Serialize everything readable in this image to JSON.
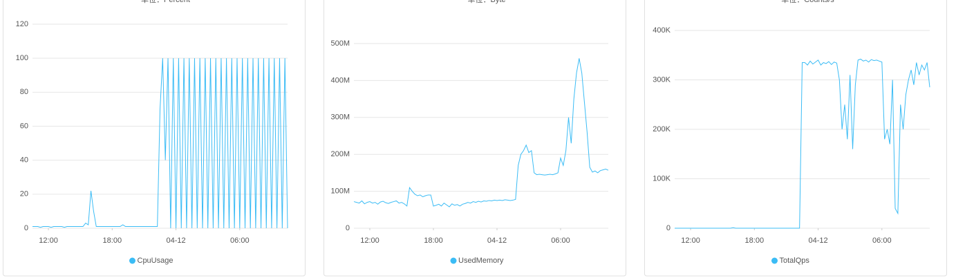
{
  "chart_data": [
    {
      "type": "line",
      "subtitle": "单位：Percent",
      "x": [
        10.5,
        10.75,
        11,
        11.25,
        11.5,
        11.75,
        12,
        12.25,
        12.5,
        12.75,
        13,
        13.25,
        13.5,
        13.75,
        14,
        14.25,
        14.5,
        14.75,
        15,
        15.25,
        15.5,
        15.75,
        16,
        16.25,
        16.5,
        16.75,
        17,
        17.25,
        17.5,
        17.75,
        18,
        18.25,
        18.5,
        18.75,
        19,
        19.25,
        19.5,
        19.75,
        20,
        20.25,
        20.5,
        20.75,
        21,
        21.25,
        21.5,
        21.75,
        22,
        22.25,
        22.5,
        22.75,
        23,
        23.25,
        23.5,
        23.75,
        24,
        24.25,
        24.5,
        24.75,
        25,
        25.25,
        25.5,
        25.75,
        26,
        26.25,
        26.5,
        26.75,
        27,
        27.25,
        27.5,
        27.75,
        28,
        28.25,
        28.5,
        28.75,
        29,
        29.25,
        29.5,
        29.75,
        30,
        30.25,
        30.5,
        30.75,
        31,
        31.25,
        31.5,
        31.75,
        32,
        32.25,
        32.5,
        32.75,
        33,
        33.25,
        33.5,
        33.75,
        34,
        34.25,
        34.5
      ],
      "series": [
        {
          "name": "CpuUsage",
          "color": "#3bbcf5",
          "values": [
            1,
            1,
            1,
            0.5,
            1,
            1,
            1,
            0.5,
            1,
            1,
            1,
            1,
            0.5,
            1,
            1,
            1,
            1,
            1,
            1,
            1,
            3,
            2,
            22,
            10,
            1,
            1,
            1,
            1,
            1,
            1,
            1,
            1,
            1,
            1,
            2,
            1,
            1,
            1,
            1,
            1,
            1,
            1,
            1,
            1,
            1,
            1,
            1,
            1,
            70,
            100,
            40,
            100,
            0,
            100,
            0,
            100,
            0,
            100,
            0,
            100,
            0,
            100,
            0,
            100,
            0,
            100,
            0,
            100,
            0,
            100,
            0,
            100,
            0,
            100,
            0,
            100,
            0,
            100,
            0,
            100,
            0,
            100,
            0,
            100,
            0,
            100,
            0,
            100,
            0,
            100,
            0,
            100,
            0,
            100,
            0,
            100,
            0
          ]
        }
      ],
      "xlim": [
        10.5,
        34.5
      ],
      "xticks": [
        {
          "value": 12,
          "label": "12:00"
        },
        {
          "value": 18,
          "label": "18:00"
        },
        {
          "value": 24,
          "label": "04-12"
        },
        {
          "value": 30,
          "label": "06:00"
        }
      ],
      "ylim": [
        0,
        120
      ],
      "yticks": [
        0,
        20,
        40,
        60,
        80,
        100,
        120
      ],
      "grid": true
    },
    {
      "type": "line",
      "subtitle": "单位：Byte",
      "x": [
        10.5,
        10.75,
        11,
        11.25,
        11.5,
        11.75,
        12,
        12.25,
        12.5,
        12.75,
        13,
        13.25,
        13.5,
        13.75,
        14,
        14.25,
        14.5,
        14.75,
        15,
        15.25,
        15.5,
        15.75,
        16,
        16.25,
        16.5,
        16.75,
        17,
        17.25,
        17.5,
        17.75,
        18,
        18.25,
        18.5,
        18.75,
        19,
        19.25,
        19.5,
        19.75,
        20,
        20.25,
        20.5,
        20.75,
        21,
        21.25,
        21.5,
        21.75,
        22,
        22.25,
        22.5,
        22.75,
        23,
        23.25,
        23.5,
        23.75,
        24,
        24.25,
        24.5,
        24.75,
        25,
        25.25,
        25.5,
        25.75,
        26,
        26.25,
        26.5,
        26.75,
        27,
        27.25,
        27.5,
        27.75,
        28,
        28.25,
        28.5,
        28.75,
        29,
        29.25,
        29.5,
        29.75,
        30,
        30.25,
        30.5,
        30.75,
        31,
        31.25,
        31.5,
        31.75,
        32,
        32.25,
        32.5,
        32.75,
        33,
        33.25,
        33.5,
        33.75,
        34,
        34.25,
        34.5
      ],
      "series": [
        {
          "name": "UsedMemory",
          "color": "#3bbcf5",
          "values": [
            72000000,
            70000000,
            68000000,
            74000000,
            66000000,
            70000000,
            72000000,
            68000000,
            70000000,
            65000000,
            71000000,
            73000000,
            69000000,
            67000000,
            70000000,
            72000000,
            74000000,
            68000000,
            70000000,
            66000000,
            60000000,
            110000000,
            100000000,
            92000000,
            88000000,
            90000000,
            85000000,
            88000000,
            90000000,
            90000000,
            60000000,
            62000000,
            65000000,
            60000000,
            68000000,
            63000000,
            58000000,
            66000000,
            62000000,
            64000000,
            60000000,
            65000000,
            67000000,
            70000000,
            68000000,
            72000000,
            70000000,
            73000000,
            71000000,
            74000000,
            73000000,
            75000000,
            74000000,
            76000000,
            75000000,
            76000000,
            75000000,
            77000000,
            76000000,
            75000000,
            76000000,
            78000000,
            170000000,
            200000000,
            210000000,
            225000000,
            205000000,
            210000000,
            150000000,
            145000000,
            146000000,
            145000000,
            144000000,
            145000000,
            146000000,
            145000000,
            147000000,
            150000000,
            190000000,
            170000000,
            210000000,
            300000000,
            230000000,
            350000000,
            420000000,
            460000000,
            420000000,
            340000000,
            260000000,
            165000000,
            152000000,
            155000000,
            150000000,
            156000000,
            158000000,
            160000000,
            157000000
          ]
        }
      ],
      "xlim": [
        10.5,
        34.5
      ],
      "xticks": [
        {
          "value": 12,
          "label": "12:00"
        },
        {
          "value": 18,
          "label": "18:00"
        },
        {
          "value": 24,
          "label": "04-12"
        },
        {
          "value": 30,
          "label": "06:00"
        }
      ],
      "ylim": [
        0,
        500000000
      ],
      "yticks": [
        0,
        {
          "value": 100000000,
          "label": "100M"
        },
        {
          "value": 200000000,
          "label": "200M"
        },
        {
          "value": 300000000,
          "label": "300M"
        },
        {
          "value": 400000000,
          "label": "400M"
        },
        {
          "value": 500000000,
          "label": "500M"
        }
      ],
      "grid": true
    },
    {
      "type": "line",
      "subtitle": "单位：Counts/s",
      "x": [
        10.5,
        10.75,
        11,
        11.25,
        11.5,
        11.75,
        12,
        12.25,
        12.5,
        12.75,
        13,
        13.25,
        13.5,
        13.75,
        14,
        14.25,
        14.5,
        14.75,
        15,
        15.25,
        15.5,
        15.75,
        16,
        16.25,
        16.5,
        16.75,
        17,
        17.25,
        17.5,
        17.75,
        18,
        18.25,
        18.5,
        18.75,
        19,
        19.25,
        19.5,
        19.75,
        20,
        20.25,
        20.5,
        20.75,
        21,
        21.25,
        21.5,
        21.75,
        22,
        22.25,
        22.5,
        22.75,
        23,
        23.25,
        23.5,
        23.75,
        24,
        24.25,
        24.5,
        24.75,
        25,
        25.25,
        25.5,
        25.75,
        26,
        26.25,
        26.5,
        26.75,
        27,
        27.25,
        27.5,
        27.75,
        28,
        28.25,
        28.5,
        28.75,
        29,
        29.25,
        29.5,
        29.75,
        30,
        30.25,
        30.5,
        30.75,
        31,
        31.25,
        31.5,
        31.75,
        32,
        32.25,
        32.5,
        32.75,
        33,
        33.25,
        33.5,
        33.75,
        34,
        34.25,
        34.5
      ],
      "series": [
        {
          "name": "TotalQps",
          "color": "#3bbcf5",
          "values": [
            0,
            0,
            0,
            0,
            0,
            0,
            0,
            0,
            0,
            0,
            0,
            0,
            0,
            0,
            0,
            0,
            0,
            0,
            0,
            0,
            0,
            0,
            1000,
            0,
            0,
            0,
            0,
            0,
            0,
            0,
            0,
            0,
            0,
            0,
            0,
            0,
            0,
            0,
            0,
            0,
            0,
            0,
            0,
            0,
            0,
            0,
            0,
            0,
            335000,
            335000,
            330000,
            338000,
            332000,
            336000,
            340000,
            330000,
            335000,
            333000,
            337000,
            331000,
            336000,
            334000,
            300000,
            200000,
            250000,
            180000,
            310000,
            160000,
            290000,
            340000,
            342000,
            338000,
            340000,
            336000,
            341000,
            339000,
            340000,
            338000,
            336000,
            180000,
            200000,
            170000,
            300000,
            40000,
            30000,
            250000,
            200000,
            270000,
            300000,
            320000,
            290000,
            335000,
            310000,
            330000,
            320000,
            335000,
            285000
          ]
        }
      ],
      "xlim": [
        10.5,
        34.5
      ],
      "xticks": [
        {
          "value": 12,
          "label": "12:00"
        },
        {
          "value": 18,
          "label": "18:00"
        },
        {
          "value": 24,
          "label": "04-12"
        },
        {
          "value": 30,
          "label": "06:00"
        }
      ],
      "ylim": [
        0,
        400000
      ],
      "yticks": [
        0,
        {
          "value": 100000,
          "label": "100K"
        },
        {
          "value": 200000,
          "label": "200K"
        },
        {
          "value": 300000,
          "label": "300K"
        },
        {
          "value": 400000,
          "label": "400K"
        }
      ],
      "grid": true
    }
  ]
}
